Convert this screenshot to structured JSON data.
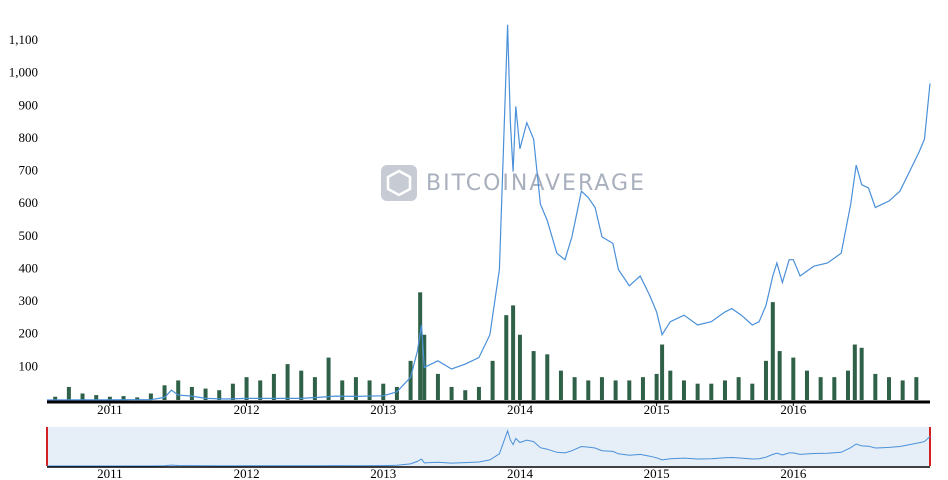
{
  "chart_data": {
    "type": "line",
    "watermark": "BITCOINAVERAGE",
    "xlim": [
      2010.54,
      2017.0
    ],
    "xticks": [
      2011,
      2012,
      2013,
      2014,
      2015,
      2016
    ],
    "ylim": [
      0,
      1180
    ],
    "yticks": [
      100,
      200,
      300,
      400,
      500,
      600,
      700,
      800,
      900,
      {
        "value": 1000,
        "label": "1,000"
      },
      {
        "value": 1100,
        "label": "1,100"
      }
    ],
    "series": [
      {
        "type": "line",
        "color": "#4a90d9",
        "x": [
          2010.54,
          2010.8,
          2011.0,
          2011.15,
          2011.3,
          2011.4,
          2011.45,
          2011.5,
          2011.6,
          2011.7,
          2011.85,
          2012.0,
          2012.2,
          2012.4,
          2012.55,
          2012.65,
          2012.8,
          2013.0,
          2013.1,
          2013.2,
          2013.25,
          2013.28,
          2013.3,
          2013.4,
          2013.5,
          2013.6,
          2013.7,
          2013.78,
          2013.85,
          2013.91,
          2013.93,
          2013.95,
          2013.97,
          2014.0,
          2014.05,
          2014.1,
          2014.15,
          2014.2,
          2014.27,
          2014.33,
          2014.38,
          2014.45,
          2014.5,
          2014.55,
          2014.6,
          2014.68,
          2014.72,
          2014.8,
          2014.88,
          2014.95,
          2015.0,
          2015.04,
          2015.1,
          2015.2,
          2015.3,
          2015.4,
          2015.5,
          2015.55,
          2015.62,
          2015.7,
          2015.75,
          2015.8,
          2015.85,
          2015.88,
          2015.92,
          2015.97,
          2016.0,
          2016.05,
          2016.15,
          2016.25,
          2016.35,
          2016.42,
          2016.46,
          2016.5,
          2016.55,
          2016.6,
          2016.65,
          2016.7,
          2016.78,
          2016.85,
          2016.92,
          2016.96,
          2017.0
        ],
        "values": [
          0.07,
          0.2,
          0.3,
          0.9,
          1,
          8,
          30,
          15,
          12,
          5,
          3,
          5,
          5,
          5,
          9,
          12,
          11,
          13,
          25,
          70,
          150,
          230,
          100,
          120,
          95,
          110,
          130,
          200,
          400,
          1150,
          850,
          700,
          900,
          770,
          850,
          800,
          600,
          550,
          450,
          430,
          500,
          640,
          620,
          590,
          500,
          480,
          400,
          350,
          380,
          320,
          270,
          200,
          240,
          260,
          230,
          240,
          270,
          280,
          260,
          230,
          240,
          290,
          380,
          420,
          360,
          430,
          430,
          380,
          410,
          420,
          450,
          600,
          720,
          660,
          650,
          590,
          600,
          610,
          640,
          700,
          760,
          800,
          970
        ]
      },
      {
        "type": "bar",
        "color": "#2f6148",
        "x": [
          2010.6,
          2010.7,
          2010.8,
          2010.9,
          2011.0,
          2011.1,
          2011.2,
          2011.3,
          2011.4,
          2011.5,
          2011.6,
          2011.7,
          2011.8,
          2011.9,
          2012.0,
          2012.1,
          2012.2,
          2012.3,
          2012.4,
          2012.5,
          2012.6,
          2012.7,
          2012.8,
          2012.9,
          2013.0,
          2013.1,
          2013.2,
          2013.27,
          2013.3,
          2013.4,
          2013.5,
          2013.6,
          2013.7,
          2013.8,
          2013.9,
          2013.95,
          2014.0,
          2014.1,
          2014.2,
          2014.3,
          2014.4,
          2014.5,
          2014.6,
          2014.7,
          2014.8,
          2014.9,
          2015.0,
          2015.04,
          2015.1,
          2015.2,
          2015.3,
          2015.4,
          2015.5,
          2015.6,
          2015.7,
          2015.8,
          2015.85,
          2015.9,
          2016.0,
          2016.1,
          2016.2,
          2016.3,
          2016.4,
          2016.45,
          2016.5,
          2016.6,
          2016.7,
          2016.8,
          2016.9
        ],
        "values": [
          10,
          40,
          20,
          15,
          10,
          12,
          8,
          20,
          45,
          60,
          40,
          35,
          30,
          50,
          70,
          60,
          80,
          110,
          90,
          70,
          130,
          60,
          70,
          60,
          50,
          40,
          120,
          330,
          200,
          80,
          40,
          30,
          40,
          120,
          260,
          290,
          200,
          150,
          140,
          90,
          70,
          60,
          70,
          60,
          60,
          70,
          80,
          170,
          90,
          60,
          50,
          50,
          60,
          70,
          50,
          120,
          300,
          150,
          130,
          90,
          70,
          70,
          90,
          170,
          160,
          80,
          70,
          60,
          70
        ]
      }
    ]
  }
}
